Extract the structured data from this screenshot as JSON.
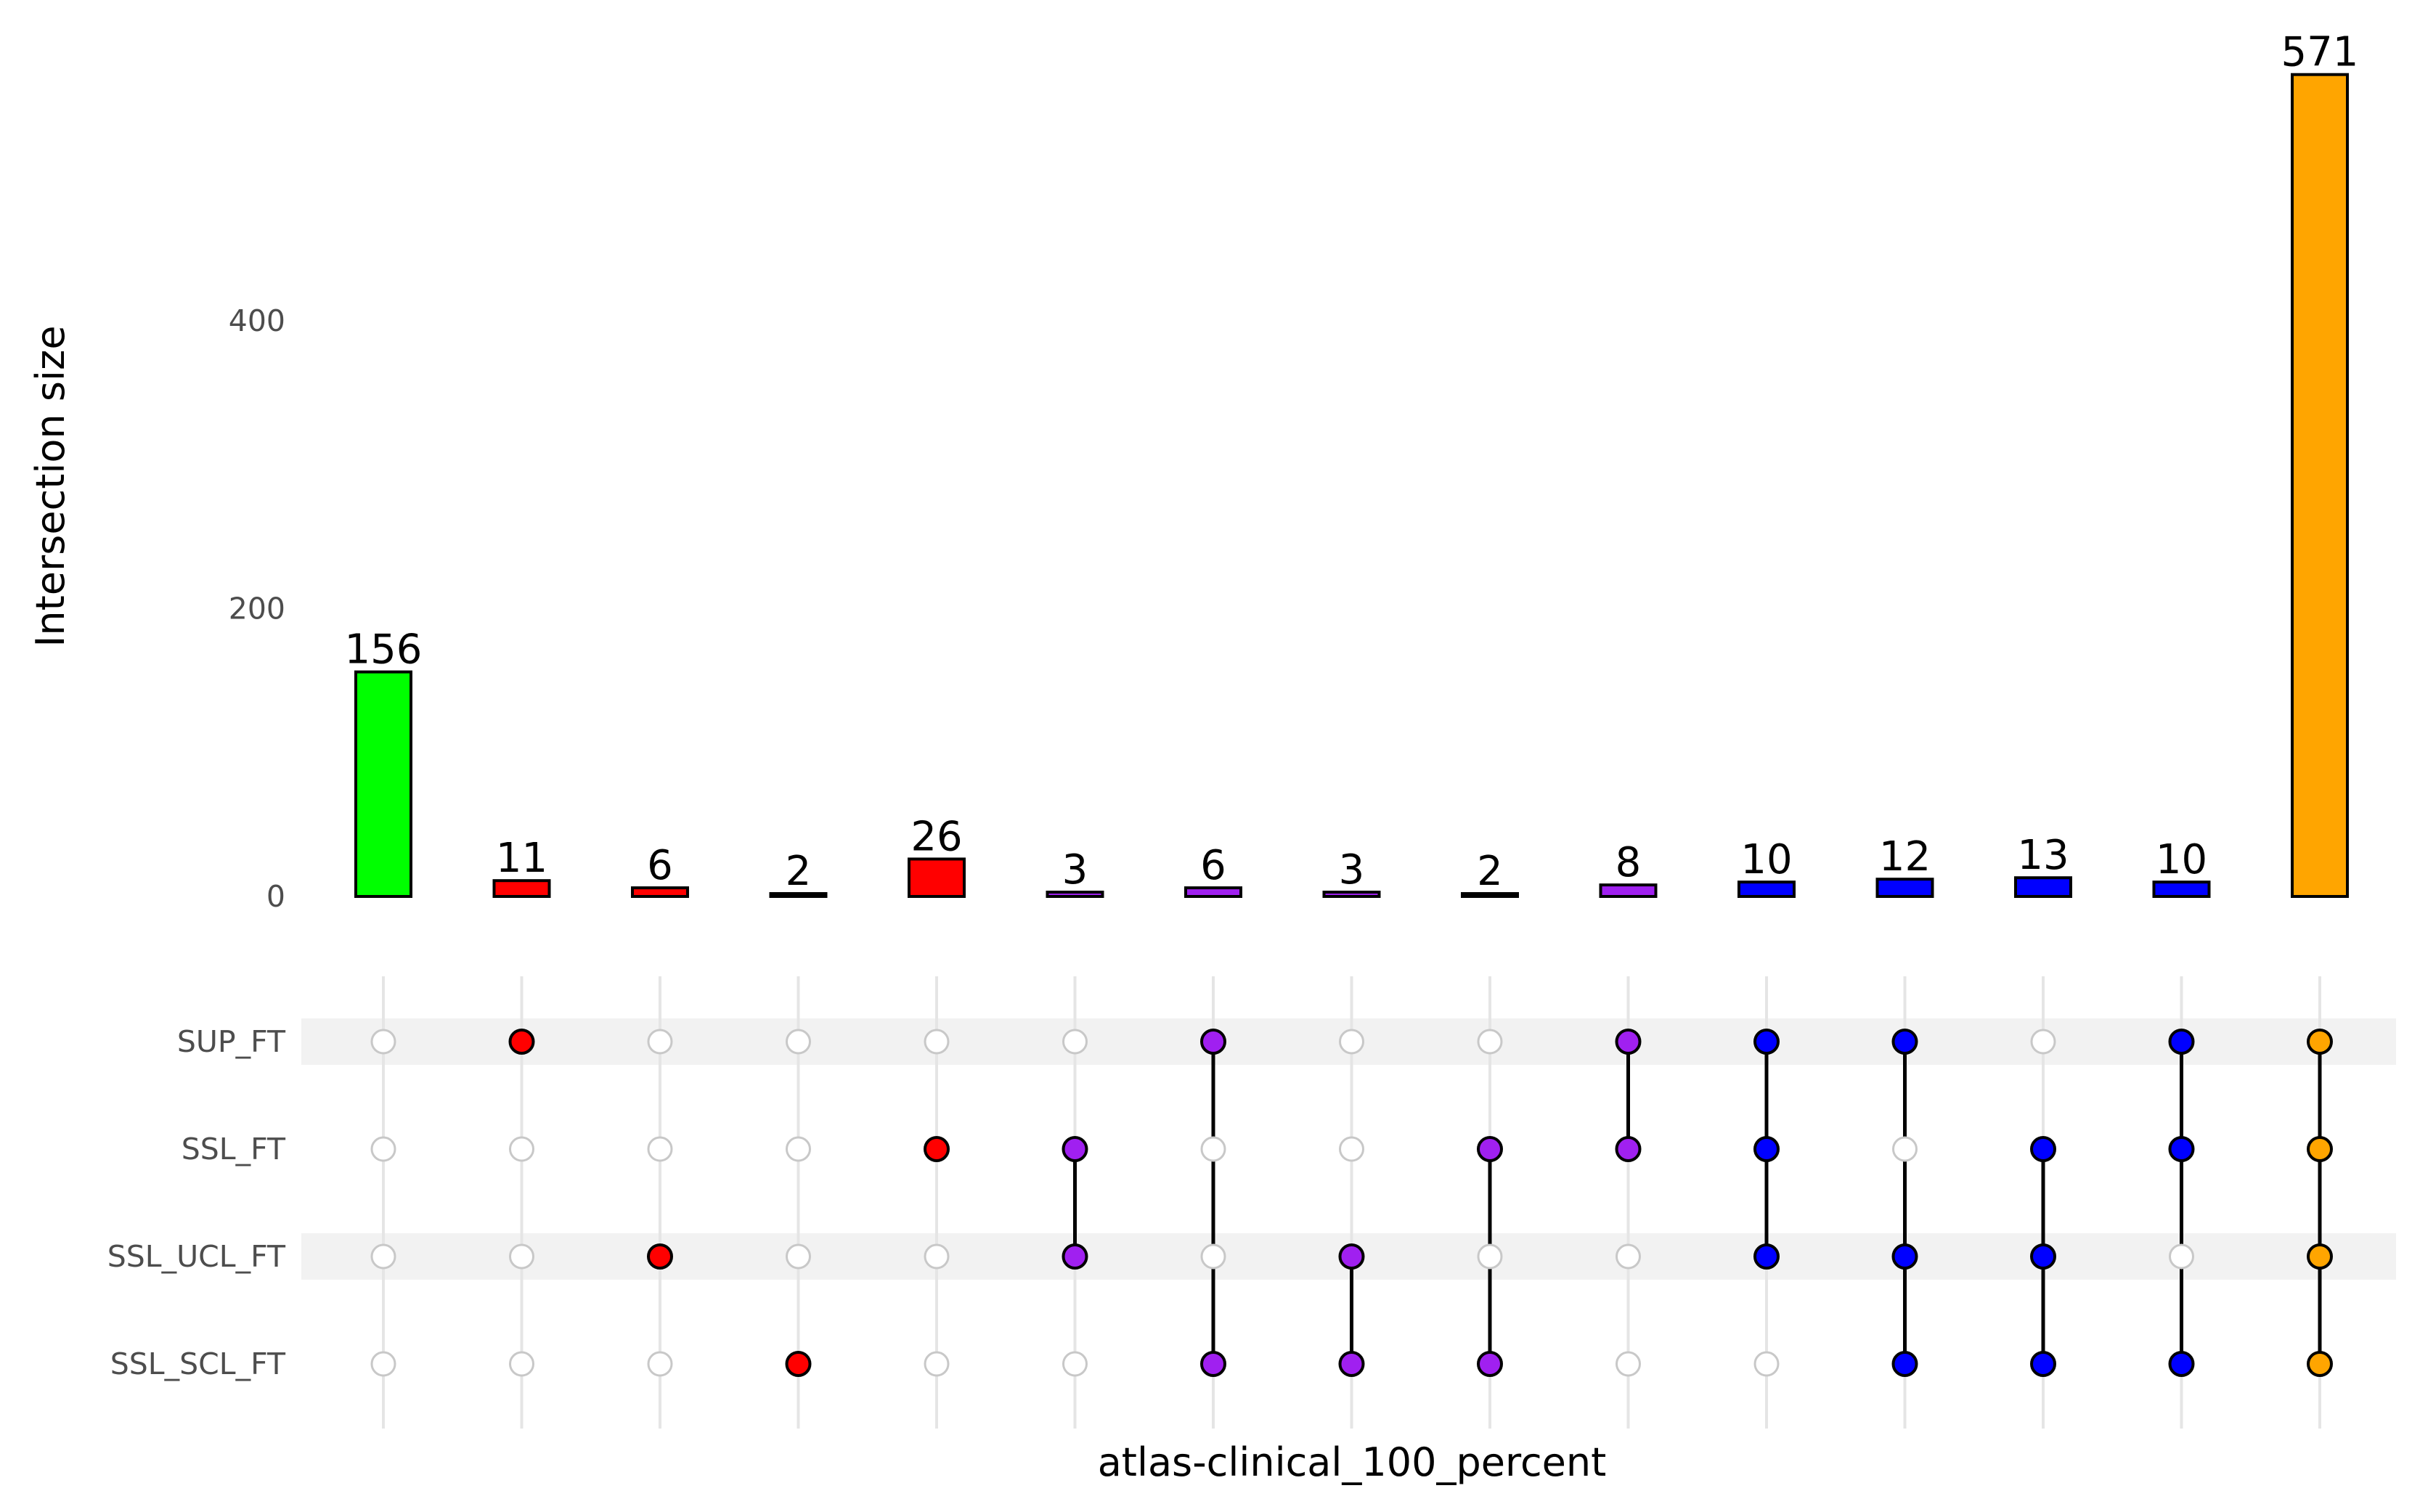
{
  "chart_data": {
    "type": "bar",
    "subtype": "upset",
    "title": "",
    "xlabel": "atlas-clinical_100_percent",
    "ylabel": "Intersection size",
    "ylim": [
      0,
      600
    ],
    "yticks": [
      0,
      200,
      400
    ],
    "grid": false,
    "sets": [
      "SUP_FT",
      "SSL_FT",
      "SSL_UCL_FT",
      "SSL_SCL_FT"
    ],
    "intersections": [
      {
        "value": 156,
        "sets": [],
        "color": "#00ff00"
      },
      {
        "value": 11,
        "sets": [
          "SUP_FT"
        ],
        "color": "#ff0000"
      },
      {
        "value": 6,
        "sets": [
          "SSL_UCL_FT"
        ],
        "color": "#ff0000"
      },
      {
        "value": 2,
        "sets": [
          "SSL_SCL_FT"
        ],
        "color": "#ff0000"
      },
      {
        "value": 26,
        "sets": [
          "SSL_FT"
        ],
        "color": "#ff0000"
      },
      {
        "value": 3,
        "sets": [
          "SSL_FT",
          "SSL_UCL_FT"
        ],
        "color": "#a020f0"
      },
      {
        "value": 6,
        "sets": [
          "SUP_FT",
          "SSL_SCL_FT"
        ],
        "color": "#a020f0"
      },
      {
        "value": 3,
        "sets": [
          "SSL_UCL_FT",
          "SSL_SCL_FT"
        ],
        "color": "#a020f0"
      },
      {
        "value": 2,
        "sets": [
          "SSL_FT",
          "SSL_SCL_FT"
        ],
        "color": "#a020f0"
      },
      {
        "value": 8,
        "sets": [
          "SUP_FT",
          "SSL_FT"
        ],
        "color": "#a020f0"
      },
      {
        "value": 10,
        "sets": [
          "SUP_FT",
          "SSL_FT",
          "SSL_UCL_FT"
        ],
        "color": "#0000ff"
      },
      {
        "value": 12,
        "sets": [
          "SUP_FT",
          "SSL_UCL_FT",
          "SSL_SCL_FT"
        ],
        "color": "#0000ff"
      },
      {
        "value": 13,
        "sets": [
          "SSL_FT",
          "SSL_UCL_FT",
          "SSL_SCL_FT"
        ],
        "color": "#0000ff"
      },
      {
        "value": 10,
        "sets": [
          "SUP_FT",
          "SSL_FT",
          "SSL_SCL_FT"
        ],
        "color": "#0000ff"
      },
      {
        "value": 571,
        "sets": [
          "SUP_FT",
          "SSL_FT",
          "SSL_UCL_FT",
          "SSL_SCL_FT"
        ],
        "color": "#ffa500"
      }
    ],
    "colors": {
      "inactive_dot_stroke": "#c8c8c8",
      "stripe": "#f2f2f2",
      "gridline": "#e5e5e5"
    }
  }
}
